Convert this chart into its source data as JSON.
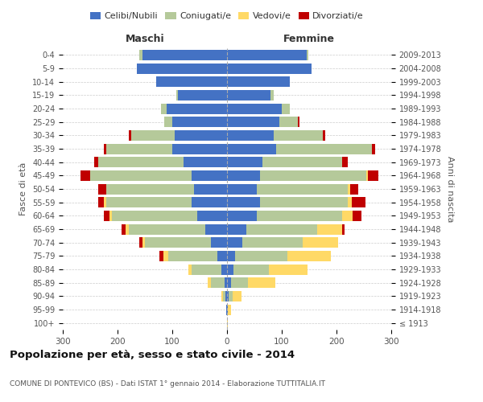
{
  "age_groups": [
    "100+",
    "95-99",
    "90-94",
    "85-89",
    "80-84",
    "75-79",
    "70-74",
    "65-69",
    "60-64",
    "55-59",
    "50-54",
    "45-49",
    "40-44",
    "35-39",
    "30-34",
    "25-29",
    "20-24",
    "15-19",
    "10-14",
    "5-9",
    "0-4"
  ],
  "birth_years": [
    "≤ 1913",
    "1914-1918",
    "1919-1923",
    "1924-1928",
    "1929-1933",
    "1934-1938",
    "1939-1943",
    "1944-1948",
    "1949-1953",
    "1954-1958",
    "1959-1963",
    "1964-1968",
    "1969-1973",
    "1974-1978",
    "1979-1983",
    "1984-1988",
    "1989-1993",
    "1994-1998",
    "1999-2003",
    "2004-2008",
    "2009-2013"
  ],
  "maschi": {
    "celibi": [
      0,
      2,
      3,
      5,
      10,
      18,
      30,
      40,
      55,
      65,
      60,
      65,
      80,
      100,
      95,
      100,
      110,
      90,
      130,
      165,
      155
    ],
    "coniugati": [
      0,
      0,
      5,
      25,
      55,
      90,
      120,
      140,
      155,
      155,
      160,
      185,
      155,
      120,
      80,
      15,
      10,
      3,
      0,
      0,
      5
    ],
    "vedovi": [
      0,
      0,
      2,
      5,
      5,
      8,
      5,
      5,
      5,
      5,
      0,
      0,
      0,
      0,
      0,
      0,
      0,
      0,
      0,
      0,
      0
    ],
    "divorziati": [
      0,
      0,
      0,
      0,
      0,
      8,
      5,
      8,
      10,
      10,
      15,
      18,
      8,
      5,
      5,
      0,
      0,
      0,
      0,
      0,
      0
    ]
  },
  "femmine": {
    "celibi": [
      0,
      2,
      3,
      8,
      12,
      15,
      28,
      35,
      55,
      60,
      55,
      60,
      65,
      90,
      85,
      95,
      100,
      80,
      115,
      155,
      145
    ],
    "coniugati": [
      0,
      0,
      8,
      30,
      65,
      95,
      110,
      130,
      155,
      160,
      165,
      195,
      145,
      175,
      90,
      35,
      15,
      5,
      0,
      0,
      3
    ],
    "vedovi": [
      1,
      5,
      15,
      50,
      70,
      80,
      65,
      45,
      20,
      8,
      5,
      2,
      0,
      0,
      0,
      0,
      0,
      0,
      0,
      0,
      0
    ],
    "divorziati": [
      0,
      0,
      0,
      0,
      0,
      0,
      0,
      5,
      15,
      25,
      15,
      20,
      10,
      5,
      5,
      2,
      0,
      0,
      0,
      0,
      0
    ]
  },
  "colors": {
    "celibi": "#4472c4",
    "coniugati": "#b5c99a",
    "vedovi": "#ffd966",
    "divorziati": "#c00000"
  },
  "xlim": 300,
  "title": "Popolazione per età, sesso e stato civile - 2014",
  "subtitle": "COMUNE DI PONTEVICO (BS) - Dati ISTAT 1° gennaio 2014 - Elaborazione TUTTITALIA.IT",
  "legend_labels": [
    "Celibi/Nubili",
    "Coniugati/e",
    "Vedovi/e",
    "Divorziati/e"
  ],
  "ylabel_left": "Fasce di età",
  "ylabel_right": "Anni di nascita"
}
